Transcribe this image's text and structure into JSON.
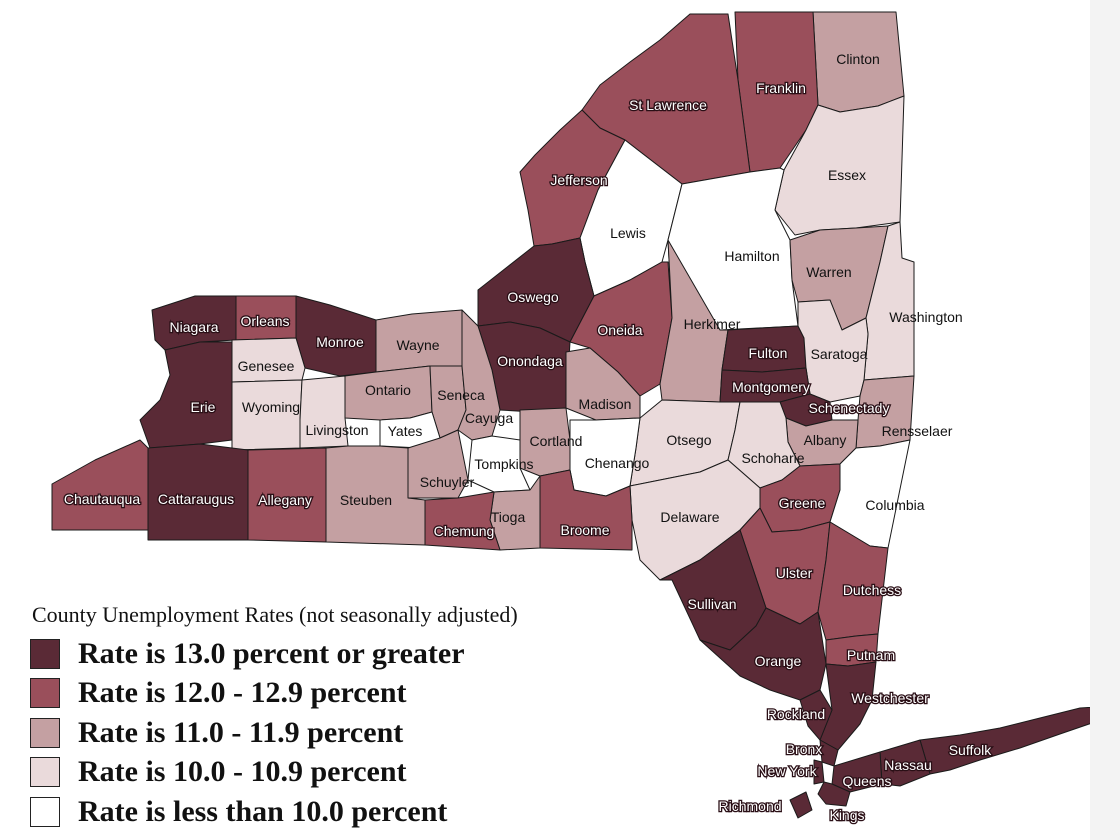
{
  "legend": {
    "title": "County Unemployment Rates (not seasonally adjusted)",
    "classes": [
      {
        "label": "Rate is 13.0 percent or greater",
        "color": "#5a2a36"
      },
      {
        "label": "Rate is 12.0 - 12.9 percent",
        "color": "#9a4f5b"
      },
      {
        "label": "Rate is 11.0 - 11.9 percent",
        "color": "#c4a0a2"
      },
      {
        "label": "Rate is 10.0 - 10.9 percent",
        "color": "#eadadb"
      },
      {
        "label": "Rate is less than 10.0 percent",
        "color": "#ffffff"
      }
    ]
  },
  "counties": [
    {
      "name": "Clinton",
      "class": 2
    },
    {
      "name": "Franklin",
      "class": 1
    },
    {
      "name": "St Lawrence",
      "class": 1
    },
    {
      "name": "Essex",
      "class": 3
    },
    {
      "name": "Jefferson",
      "class": 1
    },
    {
      "name": "Lewis",
      "class": 4
    },
    {
      "name": "Hamilton",
      "class": 4
    },
    {
      "name": "Warren",
      "class": 2
    },
    {
      "name": "Washington",
      "class": 3
    },
    {
      "name": "Oswego",
      "class": 0
    },
    {
      "name": "Oneida",
      "class": 1
    },
    {
      "name": "Herkimer",
      "class": 2
    },
    {
      "name": "Niagara",
      "class": 0
    },
    {
      "name": "Orleans",
      "class": 1
    },
    {
      "name": "Monroe",
      "class": 0
    },
    {
      "name": "Wayne",
      "class": 2
    },
    {
      "name": "Genesee",
      "class": 3
    },
    {
      "name": "Onondaga",
      "class": 0
    },
    {
      "name": "Fulton",
      "class": 0
    },
    {
      "name": "Saratoga",
      "class": 3
    },
    {
      "name": "Montgomery",
      "class": 0
    },
    {
      "name": "Ontario",
      "class": 2
    },
    {
      "name": "Seneca",
      "class": 2
    },
    {
      "name": "Madison",
      "class": 2
    },
    {
      "name": "Schenectady",
      "class": 0
    },
    {
      "name": "Erie",
      "class": 0
    },
    {
      "name": "Wyoming",
      "class": 3
    },
    {
      "name": "Cayuga",
      "class": 2
    },
    {
      "name": "Rensselaer",
      "class": 2
    },
    {
      "name": "Livingston",
      "class": 3
    },
    {
      "name": "Yates",
      "class": 4
    },
    {
      "name": "Cortland",
      "class": 2
    },
    {
      "name": "Otsego",
      "class": 3
    },
    {
      "name": "Albany",
      "class": 2
    },
    {
      "name": "Tompkins",
      "class": 4
    },
    {
      "name": "Chenango",
      "class": 4
    },
    {
      "name": "Schoharie",
      "class": 3
    },
    {
      "name": "Schuyler",
      "class": 2
    },
    {
      "name": "Chautauqua",
      "class": 1
    },
    {
      "name": "Cattaraugus",
      "class": 0
    },
    {
      "name": "Allegany",
      "class": 1
    },
    {
      "name": "Steuben",
      "class": 2
    },
    {
      "name": "Greene",
      "class": 1
    },
    {
      "name": "Columbia",
      "class": 4
    },
    {
      "name": "Tioga",
      "class": 2
    },
    {
      "name": "Delaware",
      "class": 3
    },
    {
      "name": "Chemung",
      "class": 1
    },
    {
      "name": "Broome",
      "class": 1
    },
    {
      "name": "Ulster",
      "class": 1
    },
    {
      "name": "Sullivan",
      "class": 0
    },
    {
      "name": "Dutchess",
      "class": 1
    },
    {
      "name": "Putnam",
      "class": 1
    },
    {
      "name": "Orange",
      "class": 0
    },
    {
      "name": "Westchester",
      "class": 0
    },
    {
      "name": "Rockland",
      "class": 0
    },
    {
      "name": "Suffolk",
      "class": 0
    },
    {
      "name": "Bronx",
      "class": 0
    },
    {
      "name": "Nassau",
      "class": 0
    },
    {
      "name": "New York",
      "class": 0
    },
    {
      "name": "Queens",
      "class": 0
    },
    {
      "name": "Richmond",
      "class": 0
    },
    {
      "name": "Kings",
      "class": 0
    }
  ]
}
